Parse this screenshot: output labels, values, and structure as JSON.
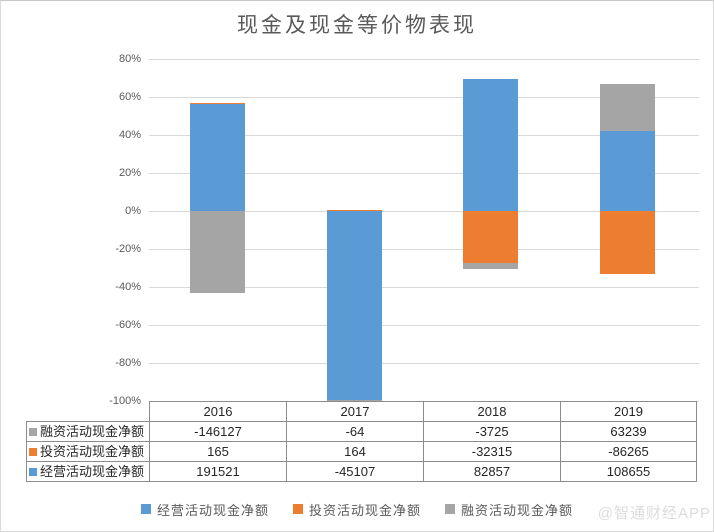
{
  "watermark": "@智通财经APP",
  "colors": {
    "operating": "#5B9BD5",
    "investing": "#ED7D31",
    "financing": "#A5A5A5",
    "gridline": "#D9D9D9",
    "axis_text": "#595959",
    "table_border": "#8C8C8C"
  },
  "chart_data": {
    "type": "bar",
    "stacked": true,
    "normalized_percent_of_abs_sum": true,
    "title": "现金及现金等价物表现",
    "categories": [
      "2016",
      "2017",
      "2018",
      "2019"
    ],
    "series": [
      {
        "name": "经营活动现金净额",
        "color_key": "operating",
        "values": [
          191521,
          -45107,
          82857,
          108655
        ]
      },
      {
        "name": "投资活动现金净额",
        "color_key": "investing",
        "values": [
          165,
          164,
          -32315,
          -86265
        ]
      },
      {
        "name": "融资活动现金净额",
        "color_key": "financing",
        "values": [
          -146127,
          -64,
          -3725,
          63239
        ]
      }
    ],
    "ylim": [
      -100,
      80
    ],
    "y_tick_labels": [
      "80%",
      "60%",
      "40%",
      "20%",
      "0%",
      "-20%",
      "-40%",
      "-60%",
      "-80%",
      "-100%"
    ],
    "grid": true,
    "legend_position": "bottom"
  },
  "table": {
    "header": [
      "",
      "2016",
      "2017",
      "2018",
      "2019"
    ],
    "rows": [
      {
        "label": "融资活动现金净额",
        "color_key": "financing",
        "values": [
          "-146127",
          "-64",
          "-3725",
          "63239"
        ]
      },
      {
        "label": "投资活动现金净额",
        "color_key": "investing",
        "values": [
          "165",
          "164",
          "-32315",
          "-86265"
        ]
      },
      {
        "label": "经营活动现金净额",
        "color_key": "operating",
        "values": [
          "191521",
          "-45107",
          "82857",
          "108655"
        ]
      }
    ]
  }
}
